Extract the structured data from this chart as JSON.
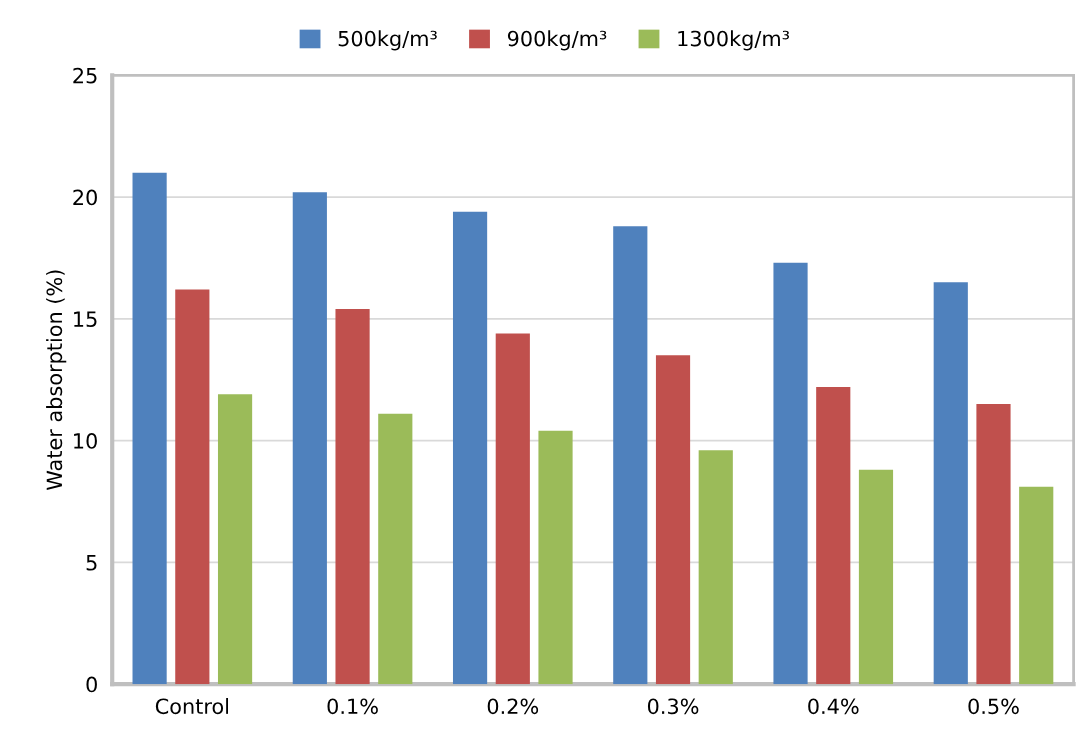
{
  "chart_data": {
    "type": "bar",
    "ylabel": "Water absorption (%)",
    "categories": [
      "Control",
      "0.1%",
      "0.2%",
      "0.3%",
      "0.4%",
      "0.5%"
    ],
    "series": [
      {
        "name": "500kg/m³",
        "color": "#4f81bd",
        "values": [
          21.0,
          20.2,
          19.4,
          18.8,
          17.3,
          16.5
        ]
      },
      {
        "name": "900kg/m³",
        "color": "#c0504d",
        "values": [
          16.2,
          15.4,
          14.4,
          13.5,
          12.2,
          11.5
        ]
      },
      {
        "name": "1300kg/m³",
        "color": "#9bbb59",
        "values": [
          11.9,
          11.1,
          10.4,
          9.6,
          8.8,
          8.1
        ]
      }
    ],
    "ylim": [
      0,
      25
    ],
    "yticks": [
      0,
      5,
      10,
      15,
      20,
      25
    ],
    "grid": "y",
    "legend": "top"
  }
}
